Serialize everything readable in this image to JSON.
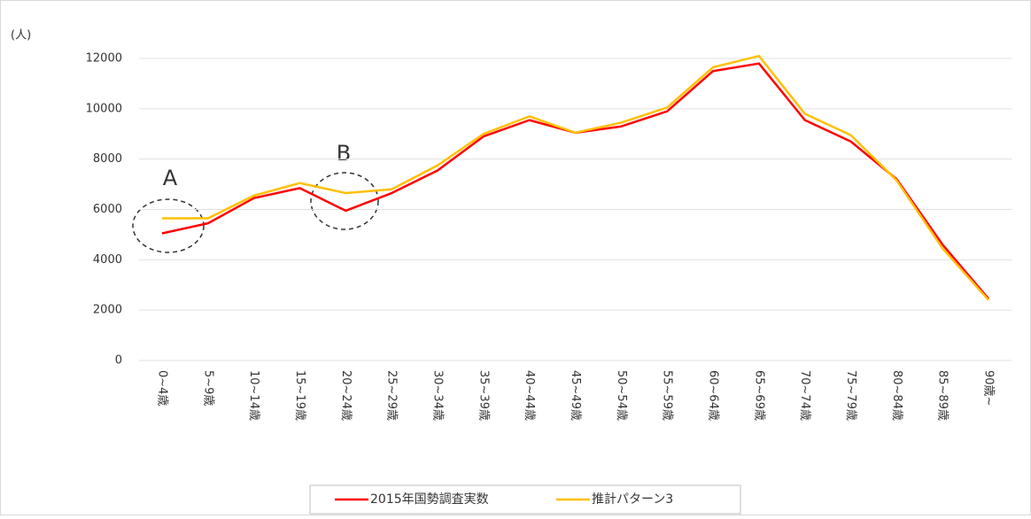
{
  "chart_data": {
    "type": "line",
    "y_label": "(人)",
    "categories": [
      "0~4歳",
      "5~9歳",
      "10~14歳",
      "15~19歳",
      "20~24歳",
      "25~29歳",
      "30~34歳",
      "35~39歳",
      "40~44歳",
      "45~49歳",
      "50~54歳",
      "55~59歳",
      "60~64歳",
      "65~69歳",
      "70~74歳",
      "75~79歳",
      "80~84歳",
      "85~89歳",
      "90歳~"
    ],
    "series": [
      {
        "name": "2015年国勢調査実数",
        "color": "#ff0000",
        "values": [
          5050,
          5450,
          6450,
          6850,
          5950,
          6650,
          7550,
          8900,
          9550,
          9050,
          9300,
          9900,
          11500,
          11800,
          9550,
          8700,
          7200,
          4600,
          2450
        ]
      },
      {
        "name": "推計パターン3",
        "color": "#ffc000",
        "values": [
          5650,
          5650,
          6550,
          7050,
          6650,
          6800,
          7750,
          9000,
          9700,
          9050,
          9450,
          10050,
          11650,
          12100,
          9800,
          8950,
          7150,
          4450,
          2400
        ]
      }
    ],
    "annotations": [
      "A",
      "B"
    ],
    "ylim": [
      0,
      12000
    ],
    "yticks": [
      0,
      2000,
      4000,
      6000,
      8000,
      10000,
      12000
    ],
    "grid": true
  }
}
